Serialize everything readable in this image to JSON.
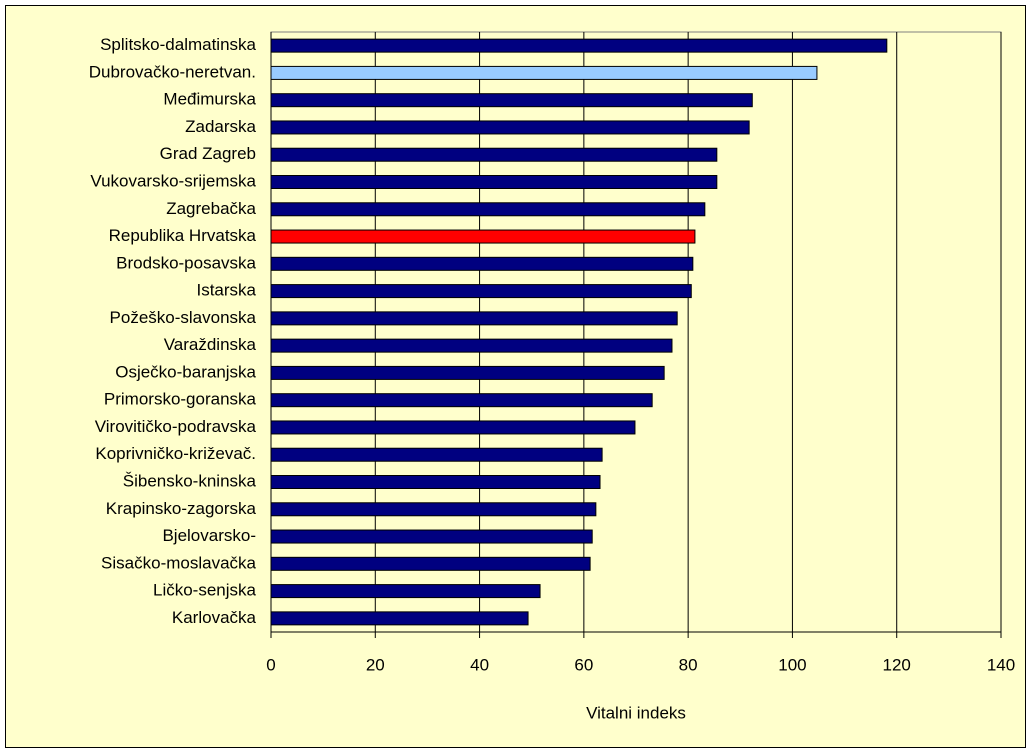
{
  "chart_data": {
    "type": "bar",
    "orientation": "horizontal",
    "x_label": "Vitalni indeks",
    "categories": [
      "Splitsko-dalmatinska",
      "Dubrovačko-neretvan.",
      "Međimurska",
      "Zadarska",
      "Grad Zagreb",
      "Vukovarsko-srijemska",
      "Zagrebačka",
      "Republika Hrvatska",
      "Brodsko-posavska",
      "Istarska",
      "Požeško-slavonska",
      "Varaždinska",
      "Osječko-baranjska",
      "Primorsko-goranska",
      "Virovitičko-podravska",
      "Koprivničko-križevač.",
      "Šibensko-kninska",
      "Krapinsko-zagorska",
      "Bjelovarsko-",
      "Sisačko-moslavačka",
      "Ličko-senjska",
      "Karlovačka"
    ],
    "values": [
      118.1,
      104.7,
      92.3,
      91.7,
      85.5,
      85.5,
      83.2,
      81.3,
      80.9,
      80.6,
      77.9,
      76.9,
      75.4,
      73.1,
      69.8,
      63.5,
      63.1,
      62.3,
      61.6,
      61.2,
      51.6,
      49.3
    ],
    "colors": [
      "#000080",
      "#99ccff",
      "#000080",
      "#000080",
      "#000080",
      "#000080",
      "#000080",
      "#ff0000",
      "#000080",
      "#000080",
      "#000080",
      "#000080",
      "#000080",
      "#000080",
      "#000080",
      "#000080",
      "#000080",
      "#000080",
      "#000080",
      "#000080",
      "#000080",
      "#000080"
    ],
    "xlim": [
      0,
      140
    ],
    "xticks": [
      0,
      20,
      40,
      60,
      80,
      100,
      120,
      140
    ],
    "grid": true
  }
}
